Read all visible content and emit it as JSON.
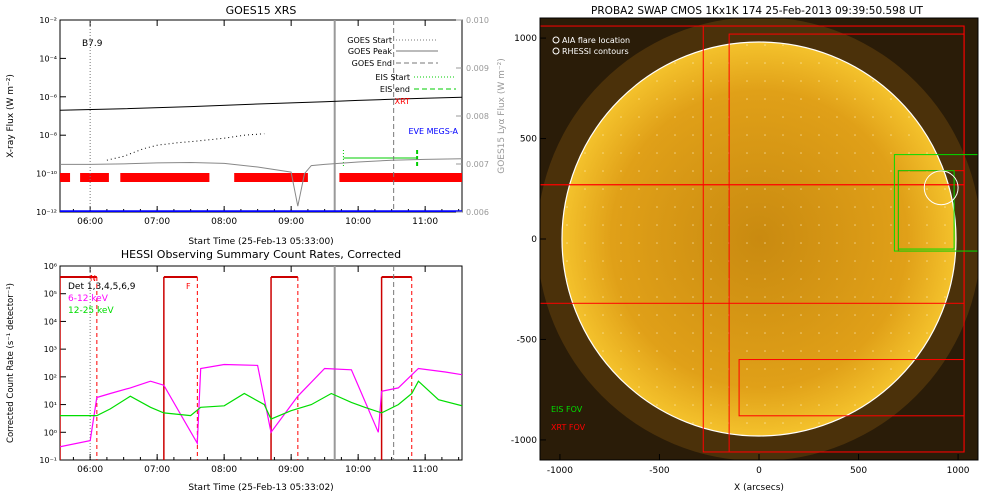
{
  "panel_goes": {
    "title": "GOES15 XRS",
    "ylabel": "X-ray Flux (W m⁻²)",
    "ylabel_right": "GOES15 Lyα Flux (W m⁻²)",
    "xlabel": "Start Time (25-Feb-13 05:33:00)",
    "class_label": "B7.9",
    "legend": [
      {
        "label": "GOES Start",
        "color": "#777777",
        "style": "dotted"
      },
      {
        "label": "GOES Peak",
        "color": "#777777",
        "style": "solid"
      },
      {
        "label": "GOES End",
        "color": "#777777",
        "style": "dashed"
      },
      {
        "label": "EIS Start",
        "color": "#00cc00",
        "style": "dotted"
      },
      {
        "label": "EIS end",
        "color": "#00cc00",
        "style": "dashed"
      },
      {
        "label": "XRT",
        "color": "#ff0000",
        "style": "text"
      },
      {
        "label": "EVE MEGS-A",
        "color": "#0000ff",
        "style": "text"
      }
    ]
  },
  "panel_hessi": {
    "title": "HESSI Observing Summary Count Rates, Corrected",
    "ylabel": "Corrected Count Rate (s⁻¹ detector⁻¹)",
    "xlabel": "Start Time (25-Feb-13 05:33:02)",
    "det_label": "Det 1,3,4,5,6,9",
    "band1": {
      "label": "6-12 keV",
      "color": "#ff00ff"
    },
    "band2": {
      "label": "12-25 keV",
      "color": "#00dd00"
    },
    "flags": [
      "N",
      "F"
    ]
  },
  "panel_swap": {
    "title": "PROBA2 SWAP CMOS 1Kx1K 174 25-Feb-2013 09:39:50.598 UT",
    "xlabel": "X (arcsecs)",
    "legend": [
      {
        "label": "AIA flare location"
      },
      {
        "label": "RHESSI contours"
      }
    ],
    "eis_label": "EIS FOV",
    "xrt_label": "XRT FOV",
    "eis_color": "#00dd00",
    "xrt_color": "#ff0000",
    "sun_color": "#d89a10"
  },
  "chart_data": [
    {
      "type": "line",
      "title": "GOES15 XRS",
      "xlabel": "Start Time (25-Feb-13 05:33:00)",
      "ylabel": "X-ray Flux (W m⁻²)",
      "x_ticks": [
        "06:00",
        "07:00",
        "08:00",
        "09:00",
        "10:00",
        "11:00"
      ],
      "x_range_hours": [
        5.55,
        11.55
      ],
      "y_scale": "log",
      "y_ticks": [
        "10⁻²",
        "10⁻⁴",
        "10⁻⁶",
        "10⁻⁸",
        "10⁻¹⁰",
        "10⁻¹²"
      ],
      "ylim": [
        1e-12,
        0.01
      ],
      "y2_ticks": [
        "0.010",
        "0.009",
        "0.008",
        "0.007",
        "0.006"
      ],
      "y2lim": [
        0.006,
        0.01
      ],
      "series": [
        {
          "name": "GOES Peak",
          "x": [
            5.55,
            6.5,
            7.5,
            8.5,
            9.0,
            9.5,
            10.0,
            10.5,
            11.0,
            11.55
          ],
          "values": [
            2e-07,
            2.4e-07,
            3.1e-07,
            4.2e-07,
            4.8e-07,
            5.5e-07,
            6.5e-07,
            7.4e-07,
            8.5e-07,
            9.5e-07
          ]
        },
        {
          "name": "GOES Start",
          "x": [
            6.25,
            6.5,
            6.8,
            7.0,
            7.3,
            7.6,
            8.0,
            8.3,
            8.6
          ],
          "values": [
            5e-10,
            8e-10,
            2e-09,
            3e-09,
            4e-09,
            5e-09,
            7e-09,
            1e-08,
            1.2e-08
          ]
        },
        {
          "name": "GOES End",
          "x": [
            5.55,
            6.0,
            6.5,
            7.0,
            7.5,
            8.0,
            8.5,
            9.0,
            9.1,
            9.2,
            9.3,
            9.5,
            10.0,
            10.5,
            11.0,
            11.55
          ],
          "values": [
            3e-10,
            3e-10,
            3.2e-10,
            3.6e-10,
            3.8e-10,
            3.4e-10,
            2.2e-10,
            1.2e-10,
            2e-12,
            1e-10,
            2.6e-10,
            3e-10,
            4e-10,
            5e-10,
            5.5e-10,
            6e-10
          ]
        },
        {
          "name": "EVE MEGS-A",
          "x": [
            5.55,
            11.55
          ],
          "values": [
            1.1e-12,
            1.1e-12
          ]
        }
      ],
      "xrt_coverage_hours": [
        [
          5.55,
          5.7
        ],
        [
          5.85,
          6.28
        ],
        [
          6.45,
          7.78
        ],
        [
          8.15,
          9.25
        ],
        [
          9.72,
          11.55
        ]
      ],
      "eis_coverage_hours": [
        9.78,
        10.88
      ],
      "markers_hours": {
        "goes_start": 6.0,
        "goes_peak": 9.65,
        "goes_end": 10.53
      }
    },
    {
      "type": "line",
      "title": "HESSI Observing Summary Count Rates, Corrected",
      "xlabel": "Start Time (25-Feb-13 05:33:02)",
      "ylabel": "Corrected Count Rate (s⁻¹ detector⁻¹)",
      "x_ticks": [
        "06:00",
        "07:00",
        "08:00",
        "09:00",
        "10:00",
        "11:00"
      ],
      "x_range_hours": [
        5.55,
        11.55
      ],
      "y_scale": "log",
      "y_ticks": [
        "10⁻¹",
        "10⁰",
        "10¹",
        "10²",
        "10³",
        "10⁴",
        "10⁵",
        "10⁶"
      ],
      "ylim": [
        0.1,
        1000000.0
      ],
      "series": [
        {
          "name": "6-12 keV",
          "x": [
            5.55,
            6.0,
            6.1,
            6.3,
            6.6,
            6.9,
            7.1,
            7.6,
            7.65,
            8.0,
            8.5,
            8.7,
            9.1,
            9.5,
            9.9,
            10.3,
            10.35,
            10.6,
            10.9,
            11.3,
            11.55
          ],
          "values": [
            0.3,
            0.5,
            18,
            25,
            40,
            70,
            50,
            0.4,
            200,
            280,
            260,
            1.0,
            20,
            200,
            180,
            1.0,
            30,
            40,
            200,
            150,
            120
          ]
        },
        {
          "name": "12-25 keV",
          "x": [
            5.55,
            5.9,
            6.1,
            6.3,
            6.6,
            6.9,
            7.1,
            7.5,
            7.65,
            8.0,
            8.3,
            8.6,
            8.7,
            9.0,
            9.3,
            9.6,
            9.9,
            10.1,
            10.35,
            10.6,
            10.8,
            10.9,
            11.2,
            11.55
          ],
          "values": [
            4,
            4,
            4,
            7,
            20,
            8,
            5,
            4,
            8,
            9,
            25,
            10,
            3,
            6,
            10,
            25,
            12,
            8,
            5,
            10,
            25,
            70,
            15,
            9
          ]
        }
      ],
      "attenuator_levels_hours": [
        [
          5.55,
          6.1
        ],
        [
          7.1,
          7.6
        ],
        [
          8.7,
          9.1
        ],
        [
          10.35,
          10.8
        ]
      ]
    },
    {
      "type": "scatter",
      "title": "PROBA2 SWAP CMOS 1Kx1K 174 25-Feb-2013 09:39:50.598 UT",
      "xlabel": "X (arcsecs)",
      "xlim": [
        -1100,
        1100
      ],
      "ylim": [
        -1100,
        1100
      ],
      "x_ticks": [
        "-1000",
        "-500",
        "0",
        "500",
        "1000"
      ],
      "y_ticks": [
        "1000",
        "500",
        "0",
        "-500",
        "-1000"
      ],
      "solar_radius_arcsec": 985,
      "rhessi_contour": {
        "x": 915,
        "y": 255,
        "r": 85
      },
      "eis_fov": [
        {
          "x0": 680,
          "x1": 1150,
          "y0": -60,
          "y1": 420
        },
        {
          "x0": 700,
          "x1": 980,
          "y0": -50,
          "y1": 340
        }
      ],
      "xrt_fov": [
        {
          "x0": -1100,
          "x1": 1030,
          "y0": -320,
          "y1": 270
        },
        {
          "x0": -1100,
          "x1": 1030,
          "y0": 270,
          "y1": 1060
        },
        {
          "x0": -280,
          "x1": 1030,
          "y0": -1060,
          "y1": 1060
        },
        {
          "x0": -150,
          "x1": 1030,
          "y0": -1060,
          "y1": 1020
        },
        {
          "x0": -100,
          "x1": 1030,
          "y0": -880,
          "y1": -600
        },
        {
          "x0": 700,
          "x1": 1030,
          "y0": -60,
          "y1": 340
        }
      ]
    }
  ]
}
